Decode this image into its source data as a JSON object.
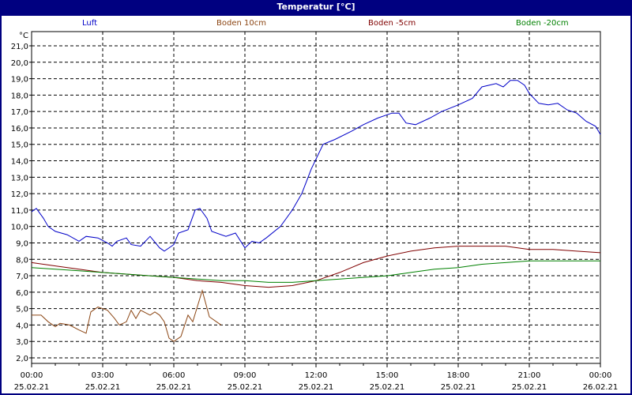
{
  "window": {
    "title": "Temperatur [°C]"
  },
  "chart_data": {
    "type": "line",
    "title": "Temperatur [°C]",
    "ylabel": "°C",
    "xlabel": "",
    "ylim": [
      2.0,
      21.0
    ],
    "xlim_hours": [
      0,
      24
    ],
    "grid": true,
    "legend_position": "top",
    "y_ticks": [
      "21,0",
      "20,0",
      "19,0",
      "18,0",
      "17,0",
      "16,0",
      "15,0",
      "14,0",
      "13,0",
      "12,0",
      "11,0",
      "10,0",
      "9,0",
      "8,0",
      "7,0",
      "6,0",
      "5,0",
      "4,0",
      "3,0",
      "2,0"
    ],
    "x_ticks": [
      {
        "time": "00:00",
        "date": "25.02.21"
      },
      {
        "time": "03:00",
        "date": "25.02.21"
      },
      {
        "time": "06:00",
        "date": "25.02.21"
      },
      {
        "time": "09:00",
        "date": "25.02.21"
      },
      {
        "time": "12:00",
        "date": "25.02.21"
      },
      {
        "time": "15:00",
        "date": "25.02.21"
      },
      {
        "time": "18:00",
        "date": "25.02.21"
      },
      {
        "time": "21:00",
        "date": "25.02.21"
      },
      {
        "time": "00:00",
        "date": "26.02.21"
      }
    ],
    "series": [
      {
        "name": "Luft",
        "color": "#0000c8",
        "points": [
          [
            0,
            10.9
          ],
          [
            0.2,
            11.1
          ],
          [
            0.5,
            10.5
          ],
          [
            0.7,
            10.0
          ],
          [
            1.0,
            9.7
          ],
          [
            1.5,
            9.5
          ],
          [
            2.0,
            9.1
          ],
          [
            2.3,
            9.4
          ],
          [
            2.8,
            9.3
          ],
          [
            3.2,
            9.0
          ],
          [
            3.4,
            8.8
          ],
          [
            3.6,
            9.1
          ],
          [
            4.0,
            9.3
          ],
          [
            4.2,
            8.9
          ],
          [
            4.6,
            8.8
          ],
          [
            5.0,
            9.4
          ],
          [
            5.4,
            8.7
          ],
          [
            5.6,
            8.5
          ],
          [
            6.0,
            8.9
          ],
          [
            6.2,
            9.6
          ],
          [
            6.6,
            9.8
          ],
          [
            6.9,
            11.0
          ],
          [
            7.1,
            11.1
          ],
          [
            7.4,
            10.5
          ],
          [
            7.6,
            9.7
          ],
          [
            8.2,
            9.4
          ],
          [
            8.6,
            9.6
          ],
          [
            9.0,
            8.7
          ],
          [
            9.3,
            9.1
          ],
          [
            9.6,
            9.0
          ],
          [
            9.9,
            9.3
          ],
          [
            10.5,
            10.0
          ],
          [
            11.0,
            11.0
          ],
          [
            11.4,
            12.0
          ],
          [
            11.8,
            13.5
          ],
          [
            12.3,
            15.0
          ],
          [
            12.8,
            15.3
          ],
          [
            13.5,
            15.8
          ],
          [
            14.0,
            16.2
          ],
          [
            14.6,
            16.6
          ],
          [
            15.2,
            16.9
          ],
          [
            15.5,
            16.9
          ],
          [
            15.8,
            16.3
          ],
          [
            16.2,
            16.2
          ],
          [
            16.8,
            16.6
          ],
          [
            17.3,
            17.0
          ],
          [
            18.0,
            17.4
          ],
          [
            18.6,
            17.8
          ],
          [
            19.0,
            18.5
          ],
          [
            19.3,
            18.6
          ],
          [
            19.6,
            18.7
          ],
          [
            19.9,
            18.5
          ],
          [
            20.2,
            18.9
          ],
          [
            20.5,
            18.9
          ],
          [
            20.8,
            18.6
          ],
          [
            21.0,
            18.1
          ],
          [
            21.4,
            17.5
          ],
          [
            21.8,
            17.4
          ],
          [
            22.2,
            17.5
          ],
          [
            22.6,
            17.1
          ],
          [
            23.0,
            16.9
          ],
          [
            23.4,
            16.4
          ],
          [
            23.8,
            16.1
          ],
          [
            24.0,
            15.6
          ]
        ]
      },
      {
        "name": "Boden 10cm",
        "color": "#8b4513",
        "points": [
          [
            0,
            4.6
          ],
          [
            0.4,
            4.6
          ],
          [
            0.7,
            4.2
          ],
          [
            1.0,
            3.9
          ],
          [
            1.2,
            4.1
          ],
          [
            1.6,
            4.0
          ],
          [
            2.0,
            3.7
          ],
          [
            2.3,
            3.5
          ],
          [
            2.5,
            4.8
          ],
          [
            2.8,
            5.1
          ],
          [
            3.2,
            4.9
          ],
          [
            3.5,
            4.4
          ],
          [
            3.7,
            4.0
          ],
          [
            4.0,
            4.2
          ],
          [
            4.2,
            4.9
          ],
          [
            4.4,
            4.4
          ],
          [
            4.6,
            4.9
          ],
          [
            5.0,
            4.6
          ],
          [
            5.2,
            4.8
          ],
          [
            5.4,
            4.6
          ],
          [
            5.6,
            4.2
          ],
          [
            5.8,
            3.2
          ],
          [
            6.0,
            3.0
          ],
          [
            6.3,
            3.3
          ],
          [
            6.6,
            4.6
          ],
          [
            6.8,
            4.2
          ],
          [
            7.2,
            6.1
          ],
          [
            7.5,
            4.5
          ],
          [
            7.8,
            4.2
          ],
          [
            8.0,
            4.0
          ]
        ]
      },
      {
        "name": "Boden -5cm",
        "color": "#800000",
        "points": [
          [
            0,
            7.8
          ],
          [
            1,
            7.6
          ],
          [
            2,
            7.4
          ],
          [
            3,
            7.2
          ],
          [
            4,
            7.1
          ],
          [
            5,
            7.0
          ],
          [
            6,
            6.9
          ],
          [
            7,
            6.7
          ],
          [
            8,
            6.6
          ],
          [
            9,
            6.4
          ],
          [
            10,
            6.3
          ],
          [
            11,
            6.4
          ],
          [
            12,
            6.7
          ],
          [
            13,
            7.2
          ],
          [
            14,
            7.8
          ],
          [
            15,
            8.2
          ],
          [
            16,
            8.5
          ],
          [
            17,
            8.7
          ],
          [
            18,
            8.8
          ],
          [
            19,
            8.8
          ],
          [
            20,
            8.8
          ],
          [
            21,
            8.6
          ],
          [
            22,
            8.6
          ],
          [
            23,
            8.5
          ],
          [
            24,
            8.4
          ]
        ]
      },
      {
        "name": "Boden -20cm",
        "color": "#008000",
        "points": [
          [
            0,
            7.5
          ],
          [
            1,
            7.4
          ],
          [
            2,
            7.3
          ],
          [
            3,
            7.2
          ],
          [
            4,
            7.1
          ],
          [
            5,
            7.0
          ],
          [
            6,
            6.9
          ],
          [
            7,
            6.8
          ],
          [
            8,
            6.7
          ],
          [
            9,
            6.7
          ],
          [
            10,
            6.6
          ],
          [
            11,
            6.6
          ],
          [
            12,
            6.7
          ],
          [
            13,
            6.8
          ],
          [
            14,
            6.9
          ],
          [
            15,
            7.0
          ],
          [
            16,
            7.2
          ],
          [
            17,
            7.4
          ],
          [
            18,
            7.5
          ],
          [
            19,
            7.7
          ],
          [
            20,
            7.8
          ],
          [
            21,
            7.9
          ],
          [
            22,
            7.9
          ],
          [
            23,
            7.9
          ],
          [
            24,
            7.9
          ]
        ]
      }
    ]
  }
}
